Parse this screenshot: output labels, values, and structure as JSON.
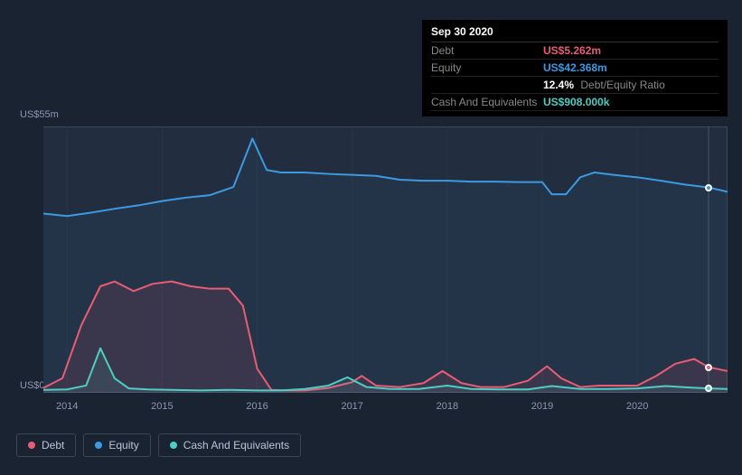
{
  "tooltip": {
    "date": "Sep 30 2020",
    "rows": [
      {
        "label": "Debt",
        "value": "US$5.262m",
        "color": "#e85d75"
      },
      {
        "label": "Equity",
        "value": "US$42.368m",
        "color": "#3b9ae1"
      },
      {
        "label": "",
        "value": "12.4%",
        "extra": "Debt/Equity Ratio",
        "color": "#ffffff"
      },
      {
        "label": "Cash And Equivalents",
        "value": "US$908.000k",
        "color": "#4ecdc4"
      }
    ]
  },
  "chart": {
    "type": "area",
    "background": "#1a2332",
    "plot_fill": "#222d3f",
    "grid_color": "#2a3545",
    "border_color": "#3a4555",
    "ylim": [
      0,
      55
    ],
    "ylabel_top": "US$55m",
    "ylabel_bottom": "US$0",
    "x_start": 2013.75,
    "x_end": 2020.95,
    "x_ticks": [
      2014,
      2015,
      2016,
      2017,
      2018,
      2019,
      2020
    ],
    "x_tick_labels": [
      "2014",
      "2015",
      "2016",
      "2017",
      "2018",
      "2019",
      "2020"
    ],
    "hover_x": 2020.75,
    "series": [
      {
        "name": "Equity",
        "color": "#3b9ae1",
        "fill_opacity": 0.06,
        "line_width": 2,
        "marker_y": 42.4,
        "data": [
          [
            2013.75,
            37
          ],
          [
            2014.0,
            36.5
          ],
          [
            2014.25,
            37.2
          ],
          [
            2014.5,
            38
          ],
          [
            2014.75,
            38.7
          ],
          [
            2015.0,
            39.6
          ],
          [
            2015.25,
            40.3
          ],
          [
            2015.5,
            40.8
          ],
          [
            2015.75,
            42.5
          ],
          [
            2015.95,
            52.5
          ],
          [
            2016.1,
            46
          ],
          [
            2016.25,
            45.5
          ],
          [
            2016.5,
            45.5
          ],
          [
            2016.75,
            45.2
          ],
          [
            2017.0,
            45
          ],
          [
            2017.25,
            44.8
          ],
          [
            2017.5,
            44
          ],
          [
            2017.75,
            43.8
          ],
          [
            2018.0,
            43.8
          ],
          [
            2018.25,
            43.6
          ],
          [
            2018.5,
            43.6
          ],
          [
            2018.75,
            43.5
          ],
          [
            2019.0,
            43.5
          ],
          [
            2019.1,
            41
          ],
          [
            2019.25,
            41
          ],
          [
            2019.4,
            44.5
          ],
          [
            2019.55,
            45.5
          ],
          [
            2019.75,
            45
          ],
          [
            2020.0,
            44.5
          ],
          [
            2020.25,
            43.8
          ],
          [
            2020.5,
            43
          ],
          [
            2020.75,
            42.4
          ],
          [
            2020.95,
            41.5
          ]
        ]
      },
      {
        "name": "Debt",
        "color": "#e85d75",
        "fill_opacity": 0.12,
        "line_width": 2,
        "marker_y": 5.3,
        "data": [
          [
            2013.75,
            1
          ],
          [
            2013.95,
            3
          ],
          [
            2014.15,
            14
          ],
          [
            2014.35,
            22
          ],
          [
            2014.5,
            23
          ],
          [
            2014.7,
            21
          ],
          [
            2014.9,
            22.5
          ],
          [
            2015.1,
            23
          ],
          [
            2015.3,
            22
          ],
          [
            2015.5,
            21.5
          ],
          [
            2015.7,
            21.5
          ],
          [
            2015.85,
            18
          ],
          [
            2016.0,
            5
          ],
          [
            2016.15,
            0.6
          ],
          [
            2016.3,
            0.5
          ],
          [
            2016.5,
            0.5
          ],
          [
            2016.75,
            1
          ],
          [
            2017.0,
            2.2
          ],
          [
            2017.1,
            3.5
          ],
          [
            2017.25,
            1.5
          ],
          [
            2017.5,
            1.2
          ],
          [
            2017.75,
            2
          ],
          [
            2017.95,
            4.5
          ],
          [
            2018.15,
            2
          ],
          [
            2018.35,
            1.2
          ],
          [
            2018.6,
            1.2
          ],
          [
            2018.85,
            2.5
          ],
          [
            2019.05,
            5.5
          ],
          [
            2019.2,
            3
          ],
          [
            2019.4,
            1.2
          ],
          [
            2019.6,
            1.5
          ],
          [
            2019.8,
            1.5
          ],
          [
            2020.0,
            1.5
          ],
          [
            2020.2,
            3.5
          ],
          [
            2020.4,
            6
          ],
          [
            2020.6,
            7
          ],
          [
            2020.75,
            5.3
          ],
          [
            2020.95,
            4.5
          ]
        ]
      },
      {
        "name": "Cash And Equivalents",
        "color": "#4ecdc4",
        "fill_opacity": 0.1,
        "line_width": 2,
        "marker_y": 0.9,
        "data": [
          [
            2013.75,
            0.6
          ],
          [
            2014.0,
            0.7
          ],
          [
            2014.2,
            1.5
          ],
          [
            2014.35,
            9.2
          ],
          [
            2014.5,
            3
          ],
          [
            2014.65,
            0.9
          ],
          [
            2014.85,
            0.7
          ],
          [
            2015.1,
            0.6
          ],
          [
            2015.4,
            0.5
          ],
          [
            2015.7,
            0.6
          ],
          [
            2016.0,
            0.5
          ],
          [
            2016.25,
            0.5
          ],
          [
            2016.5,
            0.8
          ],
          [
            2016.75,
            1.5
          ],
          [
            2016.95,
            3.2
          ],
          [
            2017.15,
            1.2
          ],
          [
            2017.4,
            0.8
          ],
          [
            2017.7,
            0.8
          ],
          [
            2018.0,
            1.5
          ],
          [
            2018.25,
            0.8
          ],
          [
            2018.55,
            0.7
          ],
          [
            2018.85,
            0.7
          ],
          [
            2019.1,
            1.4
          ],
          [
            2019.4,
            0.8
          ],
          [
            2019.7,
            0.8
          ],
          [
            2020.0,
            0.9
          ],
          [
            2020.3,
            1.4
          ],
          [
            2020.55,
            1.1
          ],
          [
            2020.75,
            0.9
          ],
          [
            2020.95,
            0.8
          ]
        ]
      }
    ],
    "legend": [
      {
        "label": "Debt",
        "color": "#e85d75"
      },
      {
        "label": "Equity",
        "color": "#3b9ae1"
      },
      {
        "label": "Cash And Equivalents",
        "color": "#4ecdc4"
      }
    ]
  }
}
